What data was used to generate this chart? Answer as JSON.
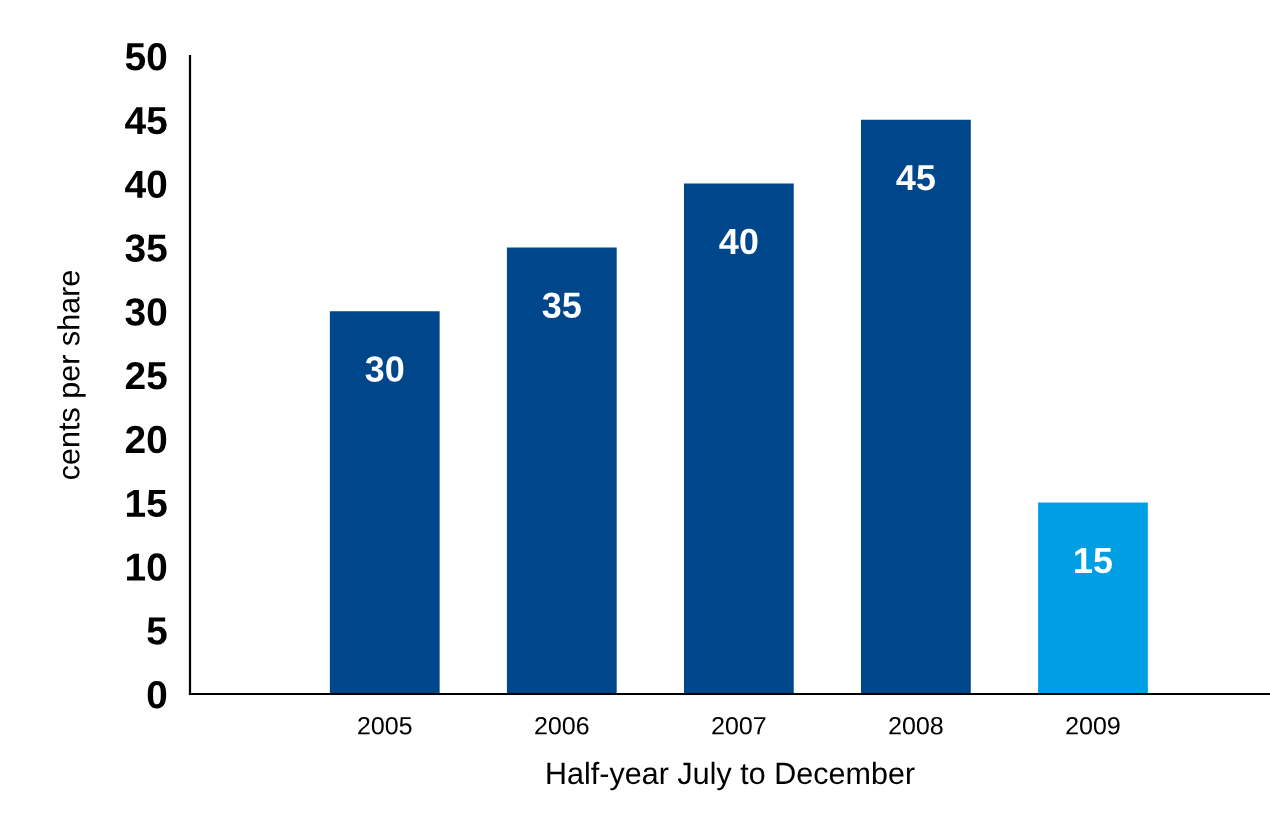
{
  "chart_data": {
    "type": "bar",
    "categories": [
      "2005",
      "2006",
      "2007",
      "2008",
      "2009"
    ],
    "values": [
      30,
      35,
      40,
      45,
      15
    ],
    "colors": [
      "#00468b",
      "#00468b",
      "#00468b",
      "#00468b",
      "#009fe3"
    ],
    "ylim": [
      0,
      50
    ],
    "yticks": [
      0,
      5,
      10,
      15,
      20,
      25,
      30,
      35,
      40,
      45,
      50
    ],
    "xlabel": "Half-year July to December",
    "ylabel": "cents per share",
    "data_labels": true,
    "grid": false,
    "legend": false
  }
}
